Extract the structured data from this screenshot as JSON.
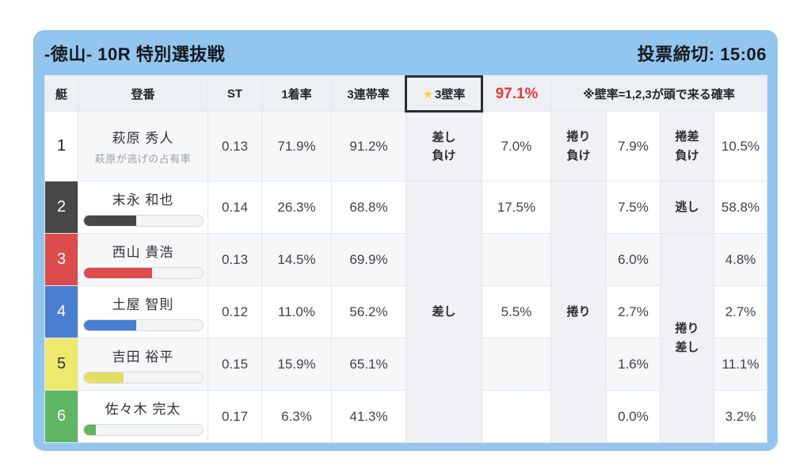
{
  "card": {
    "title": "-徳山- 10R 特別選抜戦",
    "deadline": "投票締切: 15:06",
    "accent_blue": "#92c6ee"
  },
  "table_header": {
    "boat": "艇",
    "racer": "登番",
    "st": "ST",
    "win_rate": "1着率",
    "top3_rate": "3連帯率",
    "wall_star": "★",
    "wall_label": "3壁率",
    "wall_value": "97.1%",
    "wall_value_color": "#e53935",
    "wall_bg": "#e3a43e",
    "wall_note": "※壁率=1,2,3が頭で来る確率"
  },
  "labels": {
    "sashi_make_l1": "差し",
    "sashi_make_l2": "負け",
    "makuri_make_l1": "捲り",
    "makuri_make_l2": "負け",
    "makurizashi_make_l1": "捲差",
    "makurizashi_make_l2": "負け",
    "nigashi": "逃し",
    "sashi": "差し",
    "makuri": "捲り",
    "makurizashi_l1": "捲り",
    "makurizashi_l2": "差し"
  },
  "rows": [
    {
      "num": "1",
      "name": "萩原 秀人",
      "sub": "萩原が逃げの占有率",
      "st": "0.13",
      "win1": "71.9%",
      "top3": "91.2%",
      "p1": "7.0%",
      "p2": "7.9%",
      "p3": "10.5%",
      "badge": {
        "bg": "#ffffff",
        "fg": "#222222"
      }
    },
    {
      "num": "2",
      "name": "末永 和也",
      "st": "0.14",
      "win1": "26.3%",
      "top3": "68.8%",
      "p1": "17.5%",
      "p2": "7.5%",
      "p3": "58.8%",
      "badge": {
        "bg": "#474747",
        "fg": "#ffffff"
      },
      "bar": {
        "percent": 44,
        "color": "#474747"
      }
    },
    {
      "num": "3",
      "name": "西山 貴浩",
      "st": "0.13",
      "win1": "14.5%",
      "top3": "69.9%",
      "p1": "",
      "p2": "6.0%",
      "p3": "4.8%",
      "badge": {
        "bg": "#dc4c4c",
        "fg": "#ffffff"
      },
      "bar": {
        "percent": 57,
        "color": "#dc4c4c"
      }
    },
    {
      "num": "4",
      "name": "土屋 智則",
      "st": "0.12",
      "win1": "11.0%",
      "top3": "56.2%",
      "p1": "5.5%",
      "p2": "2.7%",
      "p3": "2.7%",
      "badge": {
        "bg": "#4a7fd0",
        "fg": "#ffffff"
      },
      "bar": {
        "percent": 44,
        "color": "#4a7fd0"
      }
    },
    {
      "num": "5",
      "name": "吉田 裕平",
      "st": "0.15",
      "win1": "15.9%",
      "top3": "65.1%",
      "p1": "",
      "p2": "1.6%",
      "p3": "11.1%",
      "badge": {
        "bg": "#ede96f",
        "fg": "#333333"
      },
      "bar": {
        "percent": 33,
        "color": "#e4de62"
      }
    },
    {
      "num": "6",
      "name": "佐々木 完太",
      "st": "0.17",
      "win1": "6.3%",
      "top3": "41.3%",
      "p1": "",
      "p2": "0.0%",
      "p3": "3.2%",
      "badge": {
        "bg": "#5fb663",
        "fg": "#ffffff"
      },
      "bar": {
        "percent": 10,
        "color": "#5fb663"
      }
    }
  ]
}
